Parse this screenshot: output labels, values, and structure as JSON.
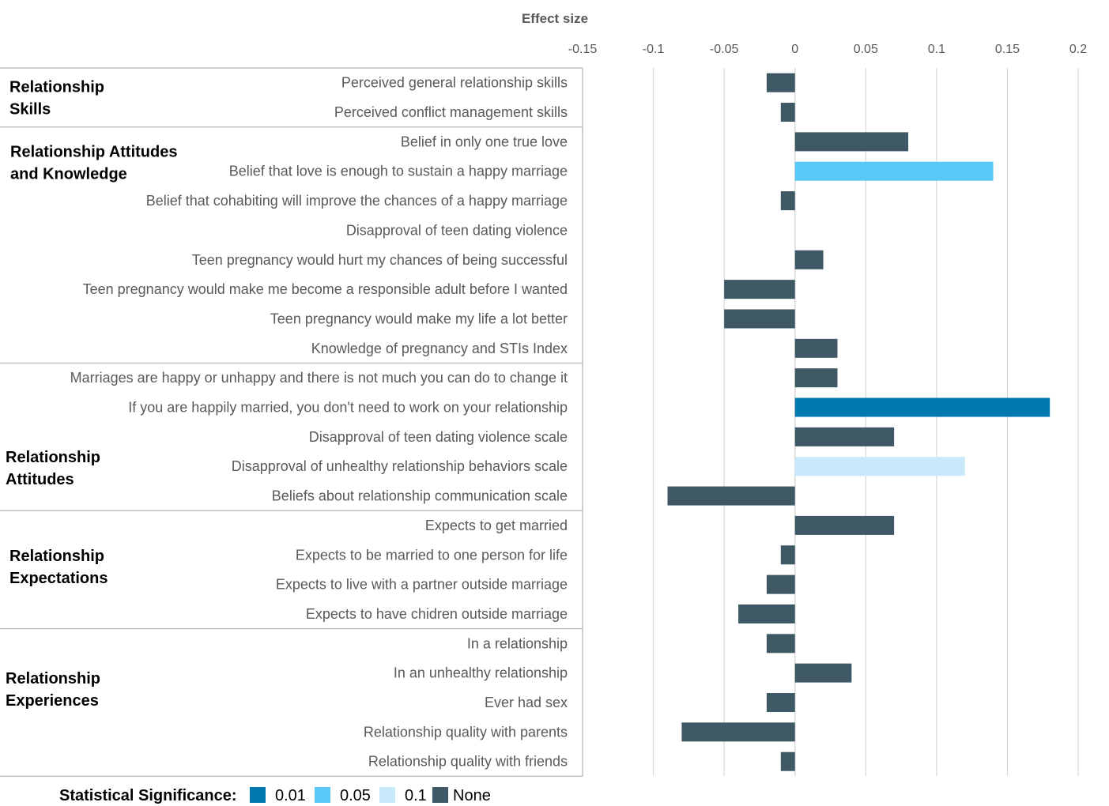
{
  "chart_data": {
    "type": "bar",
    "orientation": "horizontal",
    "title": "Effect size",
    "xlim": [
      -0.15,
      0.2
    ],
    "xticks": [
      -0.15,
      -0.1,
      -0.05,
      0,
      0.05,
      0.1,
      0.15,
      0.2
    ],
    "xtick_labels": [
      "-0.15",
      "-0.1",
      "-0.05",
      "0",
      "0.05",
      "0.1",
      "0.15",
      "0.2"
    ],
    "grid": true,
    "legend_position": "bottom",
    "legend_title": "Statistical Significance:",
    "significance_colors": {
      "0.01": "#0079B0",
      "0.05": "#5BC8FA",
      "0.1": "#C9EAFA",
      "None": "#3E5965"
    },
    "legend": [
      {
        "label": "0.01",
        "level": "0.01"
      },
      {
        "label": "0.05",
        "level": "0.05"
      },
      {
        "label": "0.1",
        "level": "0.1"
      },
      {
        "label": "None",
        "level": "None"
      }
    ],
    "groups": [
      {
        "label_lines": [
          "Relationship",
          "Skills"
        ],
        "start": 0,
        "end": 1
      },
      {
        "label_lines": [
          "Relationship Attitudes",
          "and Knowledge"
        ],
        "start": 2,
        "end": 9
      },
      {
        "label_lines": [
          "Relationship",
          "Attitudes"
        ],
        "start": 10,
        "end": 14
      },
      {
        "label_lines": [
          "Relationship",
          "Expectations"
        ],
        "start": 15,
        "end": 18
      },
      {
        "label_lines": [
          "Relationship",
          "Experiences"
        ],
        "start": 19,
        "end": 23
      }
    ],
    "items": [
      {
        "label": "Perceived general relationship skills",
        "value": -0.02,
        "significance": "None"
      },
      {
        "label": "Perceived conflict management skills",
        "value": -0.01,
        "significance": "None"
      },
      {
        "label": "Belief in only one true love",
        "value": 0.08,
        "significance": "None"
      },
      {
        "label": "Belief that love is enough to sustain a happy marriage",
        "value": 0.14,
        "significance": "0.05"
      },
      {
        "label": "Belief that cohabiting will improve the chances of a happy marriage",
        "value": -0.01,
        "significance": "None"
      },
      {
        "label": "Disapproval of teen dating violence",
        "value": 0,
        "significance": "None"
      },
      {
        "label": "Teen pregnancy would hurt my chances of being successful",
        "value": 0.02,
        "significance": "None"
      },
      {
        "label": "Teen pregnancy would make me become a responsible adult before I wanted",
        "value": -0.05,
        "significance": "None"
      },
      {
        "label": "Teen pregnancy would make my life a lot better",
        "value": -0.05,
        "significance": "None"
      },
      {
        "label": "Knowledge of pregnancy and STIs Index",
        "value": 0.03,
        "significance": "None"
      },
      {
        "label": "Marriages are happy or unhappy and there is not much you can do to change it",
        "value": 0.03,
        "significance": "None"
      },
      {
        "label": "If you are happily married, you don't need to work on your relationship",
        "value": 0.18,
        "significance": "0.01"
      },
      {
        "label": "Disapproval of teen dating violence scale",
        "value": 0.07,
        "significance": "None"
      },
      {
        "label": "Disapproval of unhealthy relationship behaviors scale",
        "value": 0.12,
        "significance": "0.1"
      },
      {
        "label": "Beliefs about relationship communication scale",
        "value": -0.09,
        "significance": "None"
      },
      {
        "label": "Expects to get married",
        "value": 0.07,
        "significance": "None"
      },
      {
        "label": "Expects to be married to one person for life",
        "value": -0.01,
        "significance": "None"
      },
      {
        "label": "Expects to live with a partner outside marriage",
        "value": -0.02,
        "significance": "None"
      },
      {
        "label": "Expects to have chidren outside marriage",
        "value": -0.04,
        "significance": "None"
      },
      {
        "label": "In a relationship",
        "value": -0.02,
        "significance": "None"
      },
      {
        "label": "In an unhealthy relationship",
        "value": 0.04,
        "significance": "None"
      },
      {
        "label": "Ever had sex",
        "value": -0.02,
        "significance": "None"
      },
      {
        "label": "Relationship quality with parents",
        "value": -0.08,
        "significance": "None"
      },
      {
        "label": "Relationship quality with friends",
        "value": -0.01,
        "significance": "None"
      }
    ]
  }
}
